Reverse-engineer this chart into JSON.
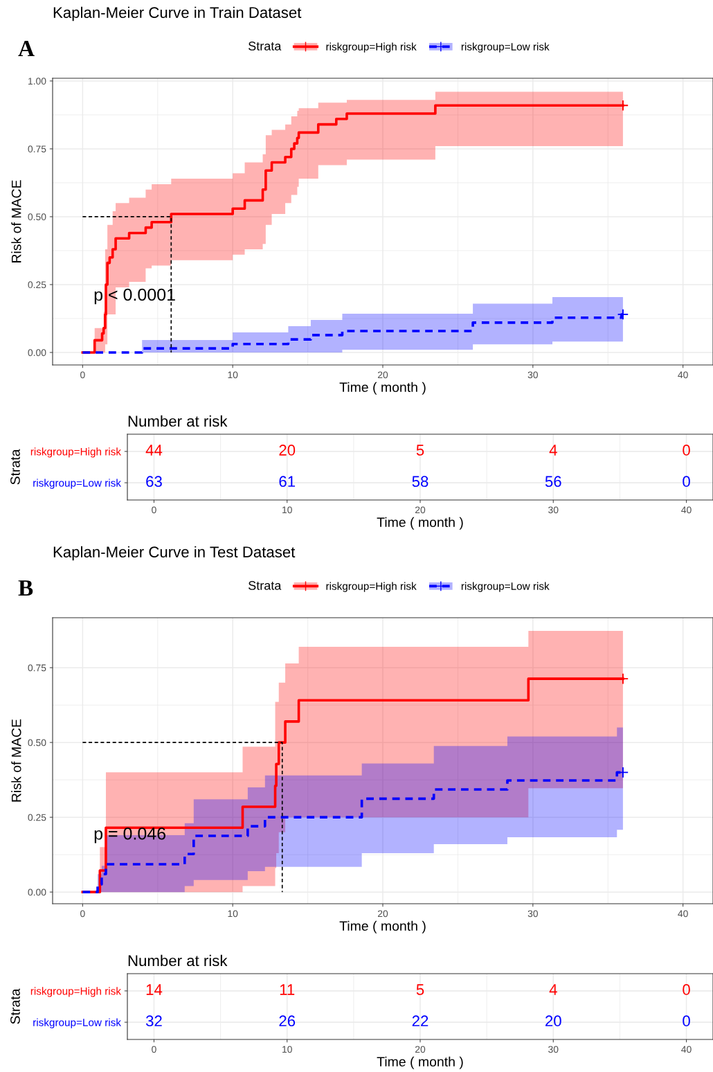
{
  "chart_data": [
    {
      "type": "step",
      "title": "Kaplan-Meier Curve in Train Dataset",
      "xlabel": "Time ( month )",
      "ylabel": "Risk of MACE",
      "legend_title": "Strata",
      "legend": "top",
      "grid": true,
      "xlim": [
        -2,
        42
      ],
      "xticks": [
        0,
        10,
        20,
        30,
        40
      ],
      "ylim": [
        -0.046,
        1.01
      ],
      "yticks": [
        {
          "value": 0,
          "label": "0.00"
        },
        {
          "value": 0.25,
          "label": "0.25"
        },
        {
          "value": 0.5,
          "label": "0.50"
        },
        {
          "value": 0.75,
          "label": "0.75"
        },
        {
          "value": 1,
          "label": "1.00"
        }
      ],
      "annotations": [
        "A",
        "p < 0.0001"
      ],
      "series": [
        {
          "type": "scatter",
          "color": "#ff0000",
          "marker": "cross",
          "x": [
            36
          ],
          "values": [
            0.91
          ]
        },
        {
          "type": "scatter",
          "color": "#0000ff",
          "marker": "cross",
          "x": [
            36
          ],
          "values": [
            0.14
          ]
        },
        {
          "name": "riskgroup=High risk",
          "color": "#ff0000",
          "line_style": "solid",
          "x": [
            0,
            0.8,
            1.3,
            1.4,
            1.5,
            1.55,
            1.65,
            1.8,
            2.0,
            2.2,
            3.1,
            4.2,
            4.6,
            5.9,
            10.0,
            10.8,
            12.0,
            12.2,
            12.6,
            13.5,
            13.9,
            14.1,
            14.3,
            14.4,
            15.7,
            16.9,
            17.6,
            23.5,
            36
          ],
          "values": [
            0,
            0.045,
            0.07,
            0.09,
            0.14,
            0.25,
            0.33,
            0.35,
            0.38,
            0.42,
            0.44,
            0.46,
            0.48,
            0.51,
            0.53,
            0.56,
            0.6,
            0.67,
            0.7,
            0.72,
            0.75,
            0.77,
            0.79,
            0.81,
            0.84,
            0.86,
            0.88,
            0.91,
            0.91
          ],
          "lower": [
            0,
            0,
            0,
            0,
            0.03,
            0.03,
            0.14,
            0.14,
            0.14,
            0.24,
            0.26,
            0.31,
            0.32,
            0.34,
            0.36,
            0.38,
            0.4,
            0.47,
            0.51,
            0.55,
            0.58,
            0.58,
            0.61,
            0.64,
            0.69,
            0.69,
            0.71,
            0.76,
            0.76
          ],
          "upper": [
            0,
            0.09,
            0.09,
            0.15,
            0.38,
            0.38,
            0.47,
            0.47,
            0.52,
            0.55,
            0.57,
            0.6,
            0.62,
            0.64,
            0.66,
            0.7,
            0.73,
            0.8,
            0.82,
            0.84,
            0.87,
            0.87,
            0.89,
            0.9,
            0.92,
            0.92,
            0.93,
            0.96,
            0.96
          ]
        },
        {
          "name": "riskgroup=Low risk",
          "color": "#0000ff",
          "line_style": "dashed",
          "x": [
            0,
            3.96,
            10.0,
            13.7,
            15.2,
            17.3,
            26.0,
            31.3,
            35.9,
            36
          ],
          "values": [
            0,
            0.015,
            0.031,
            0.048,
            0.064,
            0.079,
            0.11,
            0.128,
            0.14,
            0.14
          ],
          "lower": [
            0,
            0,
            0,
            0,
            0,
            0.01,
            0.03,
            0.04,
            0.04,
            0.04
          ],
          "upper": [
            0,
            0.046,
            0.074,
            0.097,
            0.12,
            0.143,
            0.18,
            0.204,
            0.204,
            0.204
          ]
        },
        {
          "type": "line",
          "color": "#000000",
          "line_style": "dashed",
          "x": [
            0,
            5.9,
            5.9
          ],
          "values": [
            0.5,
            0.5,
            0
          ]
        }
      ]
    },
    {
      "type": "heatmap",
      "title": "Number at risk",
      "xlabel": "Time ( month )",
      "ylabel": "Strata",
      "grid": true,
      "categories": [
        "0",
        "10",
        "20",
        "30",
        "40"
      ],
      "y_categories": [
        "riskgroup=High risk",
        "riskgroup=Low risk"
      ],
      "colors": [
        "#ff0000",
        "#0000ff"
      ],
      "cells": [
        [
          44,
          20,
          5,
          4,
          0
        ],
        [
          63,
          61,
          58,
          56,
          0
        ]
      ],
      "data_labels": true
    },
    {
      "type": "step",
      "title": "Kaplan-Meier Curve in Test Dataset",
      "xlabel": "Time ( month )",
      "ylabel": "Risk of MACE",
      "legend_title": "Strata",
      "legend": "top",
      "grid": true,
      "xlim": [
        -2,
        42
      ],
      "xticks": [
        0,
        10,
        20,
        30,
        40
      ],
      "ylim": [
        -0.039,
        0.917
      ],
      "yticks": [
        {
          "value": 0,
          "label": "0.00"
        },
        {
          "value": 0.25,
          "label": "0.25"
        },
        {
          "value": 0.5,
          "label": "0.50"
        },
        {
          "value": 0.75,
          "label": "0.75"
        }
      ],
      "annotations": [
        "B",
        "p = 0.046"
      ],
      "series": [
        {
          "type": "scatter",
          "color": "#ff0000",
          "marker": "cross",
          "x": [
            36
          ],
          "values": [
            0.713
          ]
        },
        {
          "type": "scatter",
          "color": "#0000ff",
          "marker": "cross",
          "x": [
            36
          ],
          "values": [
            0.4
          ]
        },
        {
          "name": "riskgroup=High risk",
          "color": "#ff0000",
          "line_style": "solid",
          "x": [
            0,
            1.15,
            1.55,
            10.66,
            12.83,
            12.9,
            13.07,
            13.5,
            14.4,
            29.7,
            36
          ],
          "values": [
            0,
            0.072,
            0.215,
            0.285,
            0.355,
            0.428,
            0.5,
            0.57,
            0.641,
            0.713,
            0.713
          ],
          "lower": [
            0,
            0,
            0,
            0.02,
            0.08,
            0.13,
            0.2,
            0.25,
            0.25,
            0.347,
            0.347
          ],
          "upper": [
            0,
            0.15,
            0.4,
            0.486,
            0.636,
            0.636,
            0.7,
            0.764,
            0.82,
            0.873,
            0.873
          ]
        },
        {
          "name": "riskgroup=Low risk",
          "color": "#0000ff",
          "line_style": "dashed",
          "x": [
            0,
            1.0,
            1.27,
            1.55,
            6.8,
            7.4,
            11.0,
            12.15,
            18.6,
            23.4,
            28.3,
            35.6,
            36
          ],
          "values": [
            0,
            0.026,
            0.06,
            0.093,
            0.127,
            0.188,
            0.22,
            0.25,
            0.312,
            0.343,
            0.373,
            0.4,
            0.4
          ],
          "lower": [
            0,
            0,
            0,
            0,
            0.02,
            0.04,
            0.07,
            0.084,
            0.13,
            0.16,
            0.183,
            0.208,
            0.208
          ],
          "upper": [
            0,
            0.06,
            0.088,
            0.19,
            0.23,
            0.31,
            0.35,
            0.39,
            0.43,
            0.488,
            0.52,
            0.55,
            0.55
          ]
        },
        {
          "type": "line",
          "color": "#000000",
          "line_style": "dashed",
          "x": [
            0,
            13.3,
            13.3
          ],
          "values": [
            0.5,
            0.5,
            0
          ]
        }
      ]
    },
    {
      "type": "heatmap",
      "title": "Number at risk",
      "xlabel": "Time ( month )",
      "ylabel": "Strata",
      "grid": true,
      "categories": [
        "0",
        "10",
        "20",
        "30",
        "40"
      ],
      "y_categories": [
        "riskgroup=High risk",
        "riskgroup=Low risk"
      ],
      "colors": [
        "#ff0000",
        "#0000ff"
      ],
      "cells": [
        [
          14,
          11,
          5,
          4,
          0
        ],
        [
          32,
          26,
          22,
          20,
          0
        ]
      ],
      "data_labels": true
    }
  ]
}
